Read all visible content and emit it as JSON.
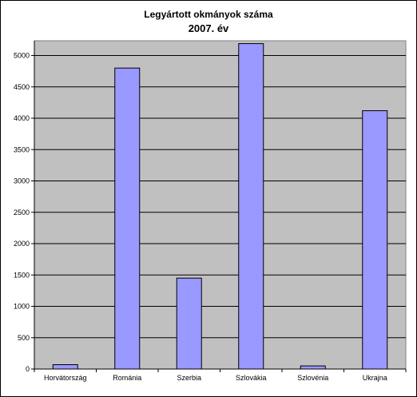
{
  "chart_data": {
    "type": "bar",
    "title": "Legyártott okmányok száma",
    "subtitle": "2007. év",
    "categories": [
      "Horvátország",
      "Románia",
      "Szerbia",
      "Szlovákia",
      "Szlovénia",
      "Ukrajna"
    ],
    "series": [
      {
        "values": [
          70,
          4800,
          1450,
          5190,
          50,
          4120
        ]
      }
    ],
    "xlabel": "",
    "ylabel": "",
    "ylim": [
      0,
      5000
    ],
    "yticks": [
      0,
      500,
      1000,
      1500,
      2000,
      2500,
      3000,
      3500,
      4000,
      4500,
      5000
    ],
    "grid": true,
    "legend": "none",
    "colors": {
      "bar_fill": "#9999FF",
      "bar_stroke": "#000000",
      "plot_background": "#C0C0C0",
      "gridline": "#000000"
    }
  }
}
